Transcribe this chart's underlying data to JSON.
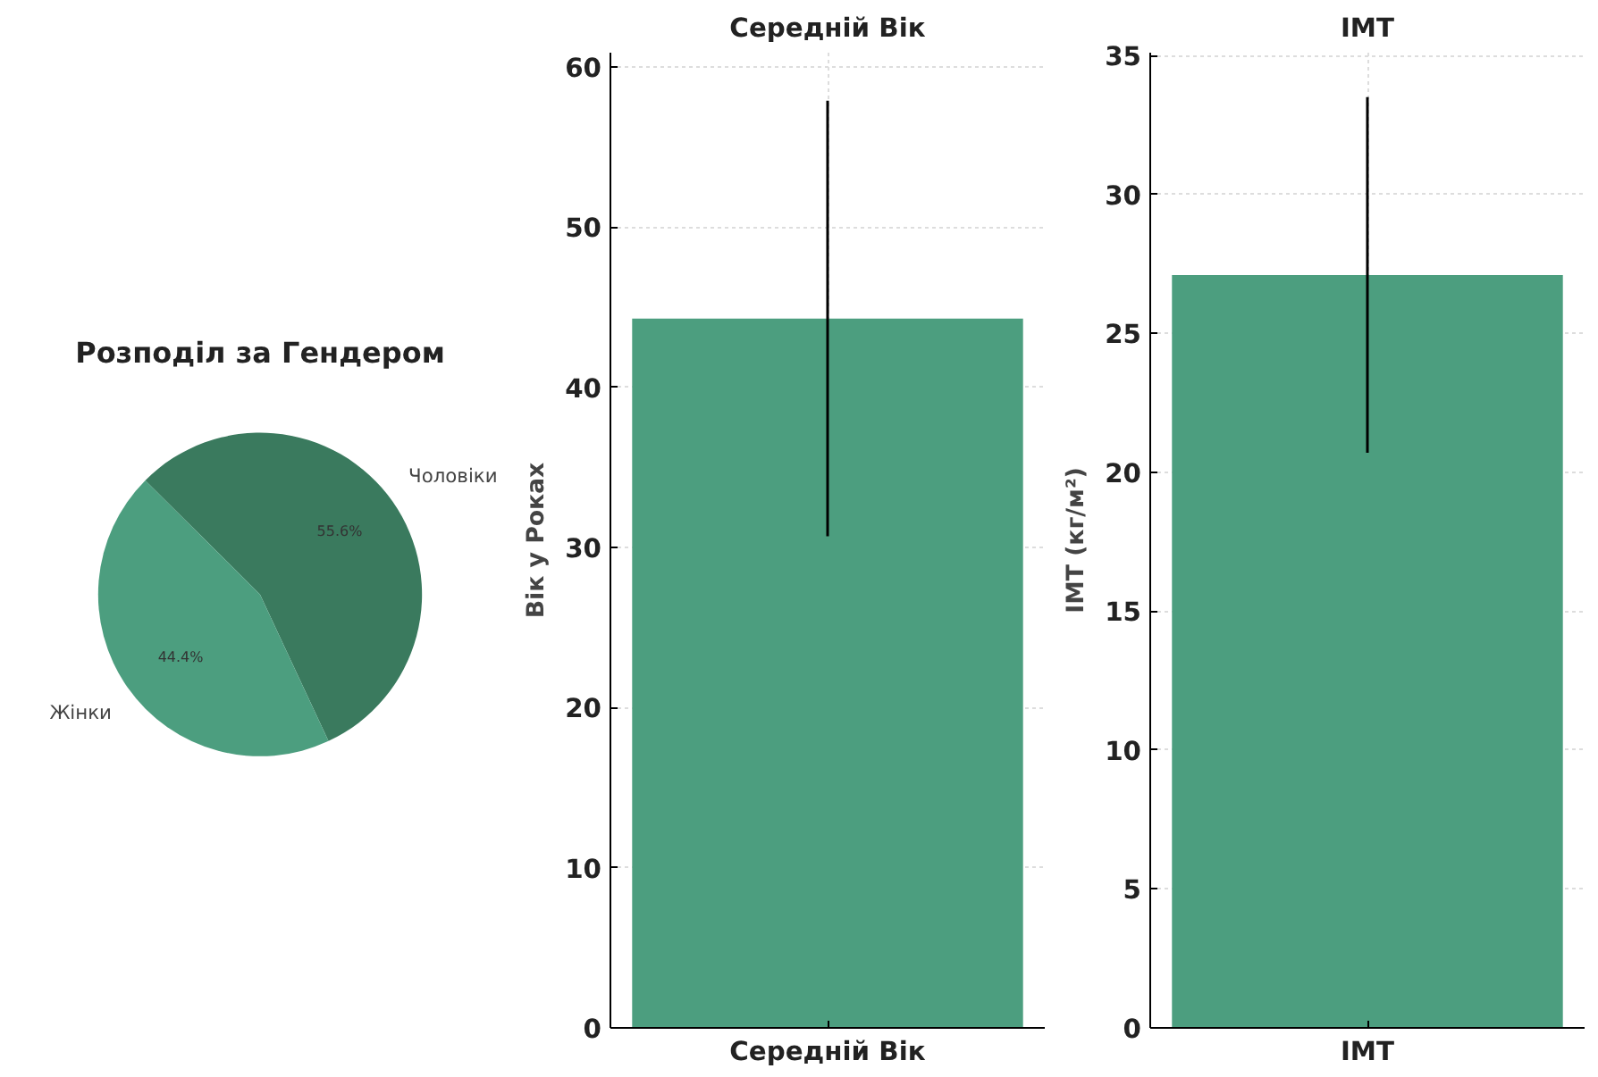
{
  "chart_data": [
    {
      "type": "pie",
      "title": "Розподіл за Гендером",
      "categories": [
        "Чоловіки",
        "Жінки"
      ],
      "values": [
        55.6,
        44.4
      ],
      "colors": [
        "#3a7a5e",
        "#4c9e7f"
      ],
      "value_labels": [
        "55.6%",
        "44.4%"
      ]
    },
    {
      "type": "bar",
      "title": "Середній Вік",
      "ylabel": "Вік у Роках",
      "categories": [
        "Середній Вік"
      ],
      "values": [
        44.3
      ],
      "errors": [
        13.6
      ],
      "color": "#4c9e7f",
      "ylim": [
        0,
        60.9
      ],
      "yticks": [
        0,
        10,
        20,
        30,
        40,
        50,
        60
      ],
      "grid": true
    },
    {
      "type": "bar",
      "title": "IMT",
      "ylabel": "IMT (кг/м²)",
      "categories": [
        "IMT"
      ],
      "values": [
        27.1
      ],
      "errors": [
        6.4
      ],
      "color": "#4c9e7f",
      "ylim": [
        0,
        35.1
      ],
      "yticks": [
        0,
        5,
        10,
        15,
        20,
        25,
        30,
        35
      ],
      "grid": true
    }
  ]
}
